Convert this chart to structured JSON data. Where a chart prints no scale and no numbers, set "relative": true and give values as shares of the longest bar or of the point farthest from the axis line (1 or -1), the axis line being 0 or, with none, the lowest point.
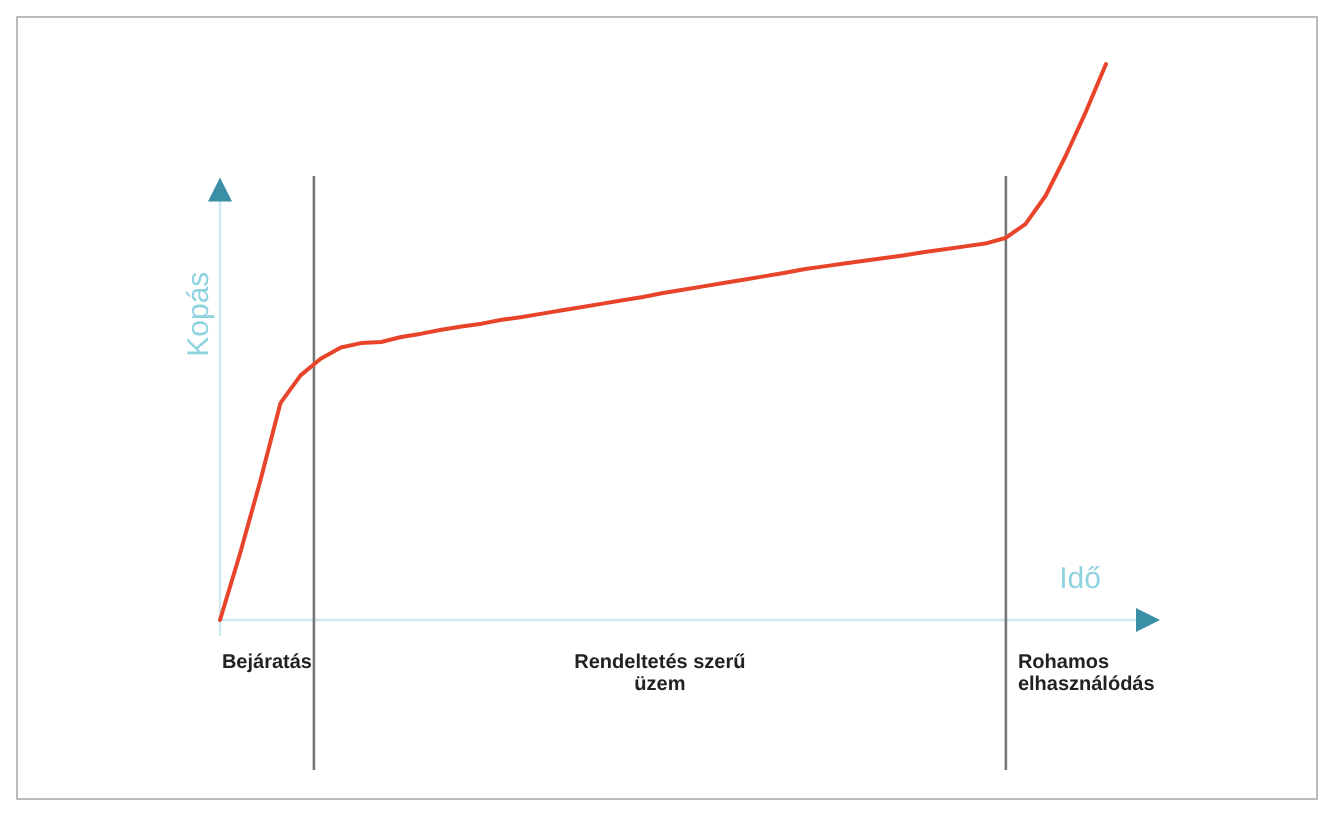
{
  "chart_data": {
    "type": "line",
    "relative": true,
    "xlabel": "Idő",
    "ylabel": "Kopás",
    "categories": [
      null,
      null,
      null,
      null,
      null,
      null,
      null,
      null,
      null,
      null,
      null,
      null,
      null,
      null,
      null,
      null,
      null,
      null,
      null,
      null,
      null,
      null,
      null,
      null,
      null,
      null,
      null,
      null,
      null,
      null,
      null,
      null,
      null,
      null,
      null,
      null,
      null,
      null,
      null,
      null,
      null,
      null,
      null,
      null,
      null
    ],
    "marker": "none",
    "line_style": "solid",
    "series": [
      {
        "color": "#e8442a",
        "values": [
          0,
          0.12,
          0.25,
          0.39,
          0.44,
          0.47,
          0.49,
          0.498,
          0.5,
          0.509,
          0.515,
          0.522,
          0.528,
          0.533,
          0.54,
          0.545,
          0.551,
          0.557,
          0.563,
          0.569,
          0.575,
          0.581,
          0.588,
          0.594,
          0.6,
          0.606,
          0.612,
          0.618,
          0.624,
          0.631,
          0.636,
          0.641,
          0.646,
          0.651,
          0.656,
          0.662,
          0.667,
          0.672,
          0.677,
          0.687,
          0.712,
          0.763,
          0.835,
          0.914,
          1
        ]
      }
    ],
    "annotations": [
      "Bejáratás",
      "Rendeltetés szerű\nüzem",
      "Rohamos\nelhasználódás"
    ]
  }
}
